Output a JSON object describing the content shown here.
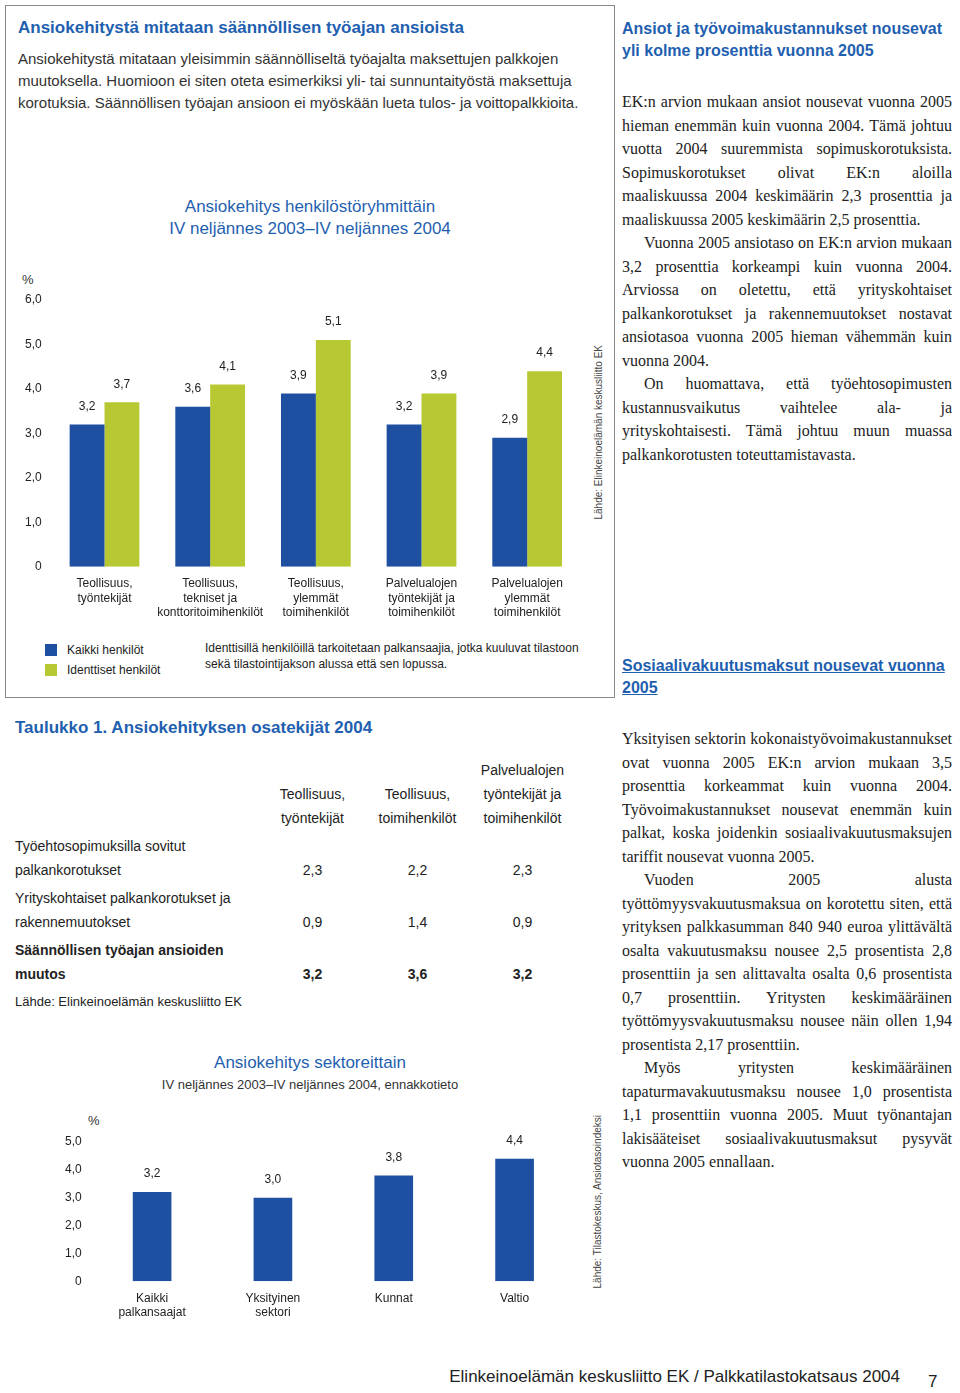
{
  "left_box": {
    "title": "Ansiokehitystä mitataan säännöllisen työajan ansioista",
    "intro": "Ansiokehitystä mitataan yleisimmin säännölliseltä työajalta maksettujen palkkojen muutoksella. Huomioon ei siten oteta esimerkiksi yli- tai sunnuntaityöstä maksettuja korotuksia. Säännöllisen työajan ansioon ei myöskään lueta tulos- ja voittopalkkioita."
  },
  "chart_data": [
    {
      "type": "bar",
      "title": "Ansiokehitys henkilöstöryhmittäin",
      "subtitle": "IV neljännes 2003–IV neljännes 2004",
      "ylabel": "%",
      "categories": [
        "Teollisuus, työntekijät",
        "Teollisuus, tekniset ja konttoritoimihenkilöt",
        "Teollisuus, ylemmät toimihenkilöt",
        "Palvelualojen työntekijät ja toimihenkilöt",
        "Palvelualojen ylemmät toimihenkilöt"
      ],
      "series": [
        {
          "name": "Kaikki henkilöt",
          "color": "#1f4fa0",
          "values": [
            3.2,
            3.6,
            3.9,
            3.2,
            2.9
          ],
          "value_labels": [
            "3,2",
            "3,6",
            "3,9",
            "3,2",
            "2,9"
          ]
        },
        {
          "name": "Identtiset henkilöt",
          "color": "#b8c832",
          "values": [
            3.7,
            4.1,
            5.1,
            3.9,
            4.4
          ],
          "value_labels": [
            "3,7",
            "4,1",
            "5,1",
            "3,9",
            "4,4"
          ]
        }
      ],
      "ylim": [
        0,
        6
      ],
      "yticks": [
        0,
        {
          "value": 1,
          "label": "1,0"
        },
        {
          "value": 2,
          "label": "2,0"
        },
        {
          "value": 3,
          "label": "3,0"
        },
        {
          "value": 4,
          "label": "4,0"
        },
        {
          "value": 5,
          "label": "5,0"
        },
        {
          "value": 6,
          "label": "6,0"
        }
      ],
      "grid": false,
      "data_labels": true,
      "legend": "bottom",
      "note": "Identtisillä henkilöillä tarkoitetaan palkansaajia, jotka kuuluvat tilastoon sekä tilastointijakson alussa että sen lopussa.",
      "source": "Lähde: Elinkeinoelämän keskusliitto EK"
    },
    {
      "type": "bar",
      "title": "Ansiokehitys sektoreittain",
      "subtitle": "IV neljännes 2003–IV neljännes 2004, ennakkotieto",
      "ylabel": "%",
      "categories": [
        "Kaikki palkansaajat",
        "Yksityinen sektori",
        "Kunnat",
        "Valtio"
      ],
      "values": [
        3.2,
        3.0,
        3.8,
        4.4
      ],
      "value_labels": [
        "3,2",
        "3,0",
        "3,8",
        "4,4"
      ],
      "color": "#1f4fa0",
      "ylim": [
        0,
        5
      ],
      "yticks": [
        0,
        {
          "value": 1,
          "label": "1,0"
        },
        {
          "value": 2,
          "label": "2,0"
        },
        {
          "value": 3,
          "label": "3,0"
        },
        {
          "value": 4,
          "label": "4,0"
        },
        {
          "value": 5,
          "label": "5,0"
        }
      ],
      "grid": false,
      "data_labels": true,
      "source": "Lähde: Tilastokeskus, Ansiotasoindeksi"
    }
  ],
  "table": {
    "title": "Taulukko 1. Ansiokehityksen osatekijät 2004",
    "columns": [
      "Teollisuus, työntekijät",
      "Teollisuus, toimihenkilöt",
      "Palvelualojen työntekijät ja toimihenkilöt"
    ],
    "rows": [
      {
        "label": "Työehtosopimuksilla sovitut palkankorotukset",
        "values": [
          "2,3",
          "2,2",
          "2,3"
        ],
        "bold": false
      },
      {
        "label": "Yrityskohtaiset palkankorotukset ja rakennemuutokset",
        "values": [
          "0,9",
          "1,4",
          "0,9"
        ],
        "bold": false
      },
      {
        "label": "Säännöllisen työajan ansioiden muutos",
        "values": [
          "3,2",
          "3,6",
          "3,2"
        ],
        "bold": true
      }
    ],
    "source": "Lähde: Elinkeinoelämän keskusliitto EK"
  },
  "right_column": {
    "sections": [
      {
        "heading": "Ansiot ja työvoimakustannukset nousevat yli kolme prosenttia vuonna 2005",
        "paragraphs": [
          "EK:n arvion mukaan ansiot nousevat vuonna 2005 hieman enemmän kuin vuonna 2004. Tämä johtuu vuotta 2004 suuremmista sopimuskorotuksista. Sopimuskorotukset olivat EK:n aloilla maaliskuussa 2004 keskimäärin 2,3 prosenttia ja maaliskuussa 2005 keskimäärin 2,5 prosenttia.",
          "Vuonna 2005 ansiotaso on EK:n arvion mukaan 3,2 prosenttia korkeampi kuin vuonna 2004. Arviossa on oletettu, että yrityskohtaiset palkankorotukset ja rakennemuutokset nostavat ansiotasoa vuonna 2005 hieman vähemmän kuin vuonna 2004.",
          "On huomattava, että työehtosopimusten kustannusvaikutus vaihtelee ala- ja yrityskohtaisesti. Tämä johtuu muun muassa palkankorotusten toteuttamistavasta."
        ]
      },
      {
        "heading": "Sosiaalivakuutusmaksut nousevat vuonna 2005",
        "paragraphs": [
          "Yksityisen sektorin kokonaistyövoimakustannukset ovat vuonna 2005 EK:n arvion mukaan 3,5 prosenttia korkeammat kuin vuonna 2004. Työvoimakustannukset nousevat enemmän kuin palkat, koska joidenkin sosiaalivakuutusmaksujen tariffit nousevat vuonna 2005.",
          "Vuoden 2005 alusta työttömyysvakuutusmaksua on korotettu siten, että yrityksen palkkasumman 840 940 euroa ylittävältä osalta vakuutusmaksu nousee 2,5 prosentista 2,8 prosenttiin ja sen alittavalta osalta 0,6 prosentista 0,7 prosenttiin. Yritysten keskimääräinen työttömyysvakuutusmaksu nousee näin ollen 1,94 prosentista 2,17 prosenttiin.",
          "Myös yritysten keskimääräinen tapaturmavakuutusmaksu nousee 1,0 prosentista 1,1 prosenttiin vuonna 2005. Muut työnantajan lakisääteiset sosiaalivakuutusmaksut pysyvät vuonna 2005 ennallaan."
        ]
      }
    ]
  },
  "footer": {
    "text": "Elinkeinoelämän keskusliitto EK / Palkkatilastokatsaus 2004",
    "page": 7
  }
}
